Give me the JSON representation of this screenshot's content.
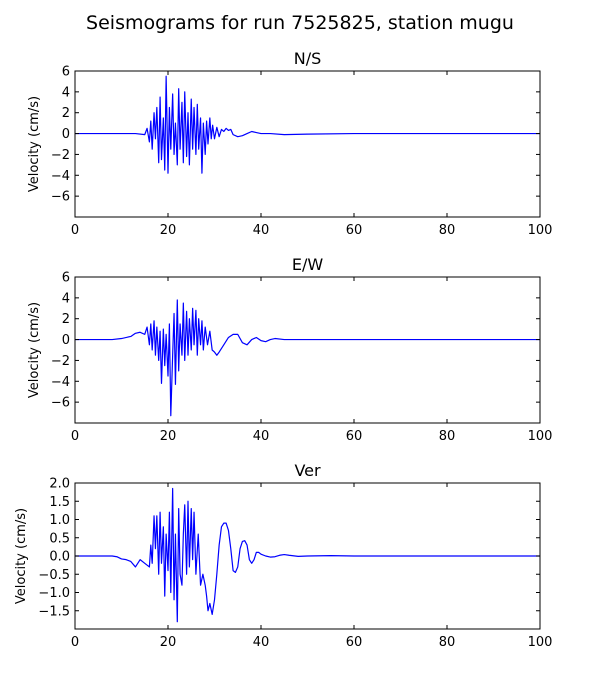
{
  "figure": {
    "title": "Seismograms for run 7525825, station mugu"
  },
  "chart_data": [
    {
      "type": "line",
      "title": "N/S",
      "xlabel": "",
      "ylabel": "Velocity (cm/s)",
      "xlim": [
        0,
        100
      ],
      "ylim": [
        -8,
        6
      ],
      "xticks": [
        0,
        20,
        40,
        60,
        80,
        100
      ],
      "yticks": [
        6,
        4,
        2,
        0,
        -2,
        -4,
        -6
      ],
      "ytick_labels": [
        "6",
        "4",
        "2",
        "0",
        "−2",
        "−4",
        "−6"
      ],
      "grid": false,
      "color": "#0000ff",
      "series": [
        {
          "x": [
            0,
            10,
            13,
            15,
            15.5,
            16,
            16.3,
            16.6,
            17,
            17.3,
            17.6,
            18,
            18.3,
            18.6,
            19,
            19.3,
            19.6,
            20,
            20.3,
            20.6,
            21,
            21.3,
            21.6,
            22,
            22.3,
            22.6,
            23,
            23.3,
            23.6,
            24,
            24.3,
            24.6,
            25,
            25.3,
            25.6,
            26,
            26.3,
            26.6,
            27,
            27.3,
            27.6,
            28,
            28.3,
            28.6,
            29,
            29.3,
            29.6,
            30,
            30.5,
            31,
            31.5,
            32,
            32.5,
            33,
            33.5,
            34,
            35,
            36,
            37,
            38,
            39,
            40,
            42,
            45,
            50,
            60,
            80,
            100
          ],
          "y": [
            0,
            0,
            0,
            -0.1,
            0.5,
            -0.8,
            1.2,
            -1.5,
            2,
            -0.5,
            2.5,
            -2.8,
            3.5,
            -2.5,
            1.5,
            -3.5,
            5.5,
            -3.8,
            2.5,
            -1.5,
            3.8,
            -2,
            1,
            -3,
            4.3,
            -1.5,
            3,
            -2.8,
            4,
            -2.2,
            2,
            -3,
            3.3,
            -1.5,
            2.5,
            -2,
            2.8,
            -1.5,
            1.5,
            -3.8,
            1,
            -2,
            1.2,
            -1,
            1.5,
            -0.5,
            0.8,
            -0.5,
            0.6,
            -0.3,
            0.4,
            0.2,
            0.5,
            0.3,
            0.4,
            -0.1,
            -0.3,
            -0.2,
            0,
            0.2,
            0.1,
            0,
            0,
            -0.1,
            -0.05,
            0,
            0,
            0
          ]
        }
      ]
    },
    {
      "type": "line",
      "title": "E/W",
      "xlabel": "",
      "ylabel": "Velocity (cm/s)",
      "xlim": [
        0,
        100
      ],
      "ylim": [
        -8,
        6
      ],
      "xticks": [
        0,
        20,
        40,
        60,
        80,
        100
      ],
      "yticks": [
        6,
        4,
        2,
        0,
        -2,
        -4,
        -6
      ],
      "ytick_labels": [
        "6",
        "4",
        "2",
        "0",
        "−2",
        "−4",
        "−6"
      ],
      "grid": false,
      "color": "#0000ff",
      "series": [
        {
          "x": [
            0,
            8,
            10,
            12,
            13,
            14,
            15,
            15.5,
            16,
            16.3,
            16.6,
            17,
            17.3,
            17.6,
            18,
            18.3,
            18.6,
            19,
            19.3,
            19.6,
            20,
            20.3,
            20.6,
            21,
            21.3,
            21.6,
            22,
            22.3,
            22.6,
            23,
            23.3,
            23.6,
            24,
            24.3,
            24.6,
            25,
            25.3,
            25.6,
            26,
            26.3,
            26.6,
            27,
            27.3,
            27.6,
            28,
            28.5,
            29,
            29.5,
            30,
            30.5,
            31,
            32,
            33,
            34,
            35,
            36,
            37,
            38,
            39,
            40,
            41,
            42,
            43,
            45,
            50,
            60,
            100
          ],
          "y": [
            0,
            0,
            0.1,
            0.3,
            0.6,
            0.7,
            0.5,
            1.2,
            -0.5,
            1.5,
            -1,
            1.8,
            -1.5,
            1.2,
            -2,
            0.8,
            -4.2,
            1,
            -2.5,
            0.5,
            -3.5,
            1.5,
            -7.3,
            -1.5,
            2.5,
            -4.3,
            3.8,
            -3,
            1.5,
            -1.5,
            3.5,
            -2,
            2.7,
            -1.5,
            2,
            -1,
            3,
            -0.5,
            2.8,
            -1.5,
            2,
            -0.5,
            1.8,
            -1,
            1.2,
            -0.5,
            0.8,
            -1,
            -1.2,
            -1.5,
            -1.2,
            -0.5,
            0.2,
            0.5,
            0.5,
            -0.3,
            -0.5,
            0,
            0.2,
            -0.1,
            -0.2,
            0,
            0.1,
            0,
            0,
            0,
            0
          ]
        }
      ]
    },
    {
      "type": "line",
      "title": "Ver",
      "xlabel": "",
      "ylabel": "Velocity (cm/s)",
      "xlim": [
        0,
        100
      ],
      "ylim": [
        -2,
        2
      ],
      "xticks": [
        0,
        20,
        40,
        60,
        80,
        100
      ],
      "yticks": [
        2,
        1.5,
        1,
        0.5,
        0,
        -0.5,
        -1,
        -1.5
      ],
      "ytick_labels": [
        "2.0",
        "1.5",
        "1.0",
        "0.5",
        "0.0",
        "−0.5",
        "−1.0",
        "−1.5"
      ],
      "grid": false,
      "color": "#0000ff",
      "series": [
        {
          "x": [
            0,
            8,
            9,
            10,
            11,
            12,
            13,
            14,
            15,
            16,
            16.3,
            16.6,
            17,
            17.3,
            17.6,
            18,
            18.3,
            18.6,
            19,
            19.3,
            19.6,
            20,
            20.3,
            20.6,
            21,
            21.3,
            21.6,
            22,
            22.3,
            22.6,
            23,
            23.3,
            23.6,
            24,
            24.3,
            24.6,
            25,
            25.3,
            25.6,
            26,
            26.5,
            27,
            27.5,
            28,
            28.3,
            28.6,
            29,
            29.5,
            30,
            30.5,
            31,
            31.5,
            32,
            32.5,
            33,
            33.5,
            34,
            34.5,
            35,
            35.5,
            36,
            36.5,
            37,
            37.5,
            38,
            38.5,
            39,
            39.5,
            40,
            41,
            42,
            43,
            44,
            45,
            46,
            48,
            50,
            55,
            60,
            70,
            100
          ],
          "y": [
            0,
            0,
            -0.02,
            -0.08,
            -0.1,
            -0.15,
            -0.3,
            -0.1,
            -0.2,
            -0.3,
            0.3,
            -0.2,
            1.1,
            0.2,
            1.1,
            -0.5,
            1.2,
            -0.2,
            0.8,
            -1.1,
            0.6,
            -0.4,
            1.2,
            -1,
            1.85,
            -1.2,
            0.6,
            -1.8,
            1.3,
            -0.5,
            -0.8,
            0.6,
            1.4,
            -0.5,
            1.5,
            -0.3,
            1.3,
            -0.1,
            1.2,
            -0.5,
            0.6,
            -0.8,
            -0.5,
            -0.8,
            -1.1,
            -1.5,
            -1.3,
            -1.6,
            -1.2,
            -0.5,
            0.3,
            0.8,
            0.9,
            0.9,
            0.7,
            0.2,
            -0.4,
            -0.45,
            -0.3,
            0.2,
            0.4,
            0.42,
            0.3,
            -0.1,
            -0.2,
            -0.1,
            0.1,
            0.1,
            0.05,
            0,
            -0.03,
            -0.02,
            0.02,
            0.04,
            0.02,
            -0.01,
            0,
            0.01,
            0,
            0,
            0
          ]
        }
      ]
    }
  ]
}
